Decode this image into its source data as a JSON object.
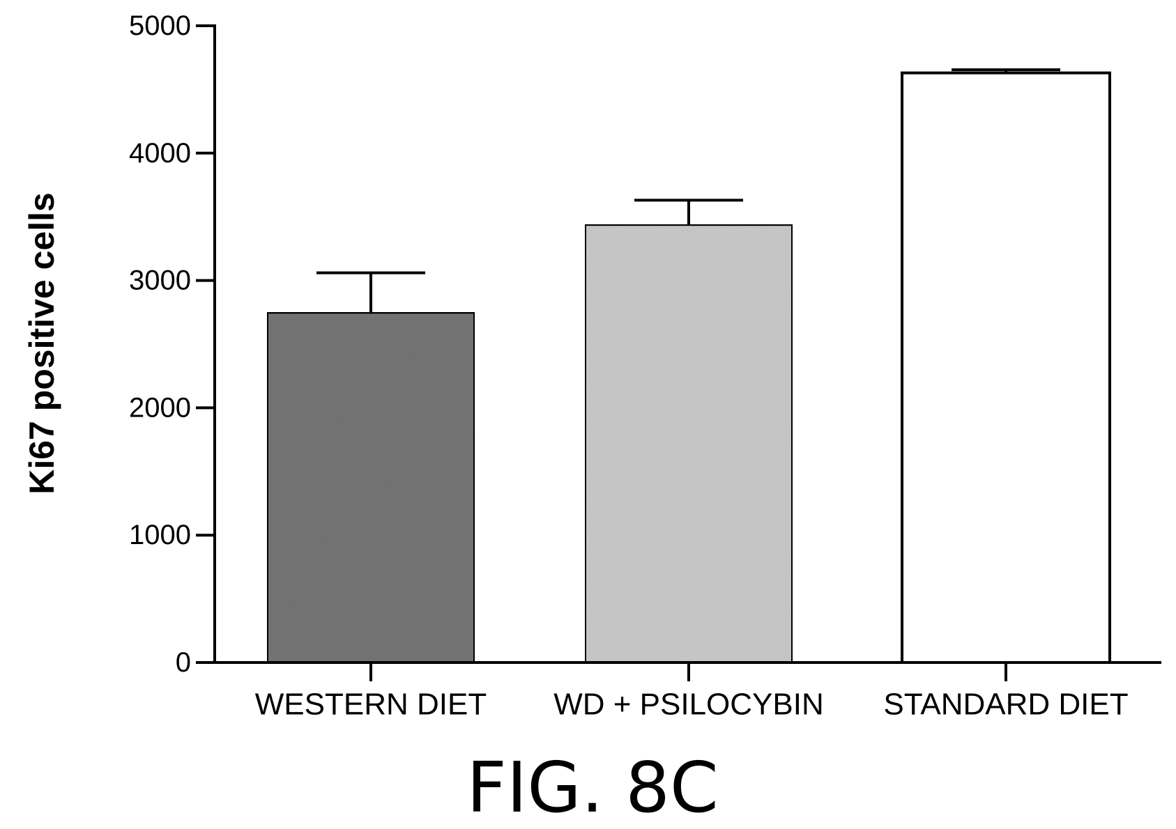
{
  "chart_data": {
    "type": "bar",
    "categories": [
      "WESTERN DIET",
      "WD + PSILOCYBIN",
      "STANDARD DIET"
    ],
    "values": [
      2750,
      3440,
      4630
    ],
    "errors": [
      310,
      190,
      25
    ],
    "fills": [
      "#7a7a7a",
      "#d2d2d2",
      "#ffffff"
    ],
    "ylabel": "Ki67 positive cells",
    "ylim": [
      0,
      5000
    ],
    "yticks": [
      0,
      1000,
      2000,
      3000,
      4000,
      5000
    ],
    "grid": false
  },
  "figure_caption": "FIG. 8C"
}
